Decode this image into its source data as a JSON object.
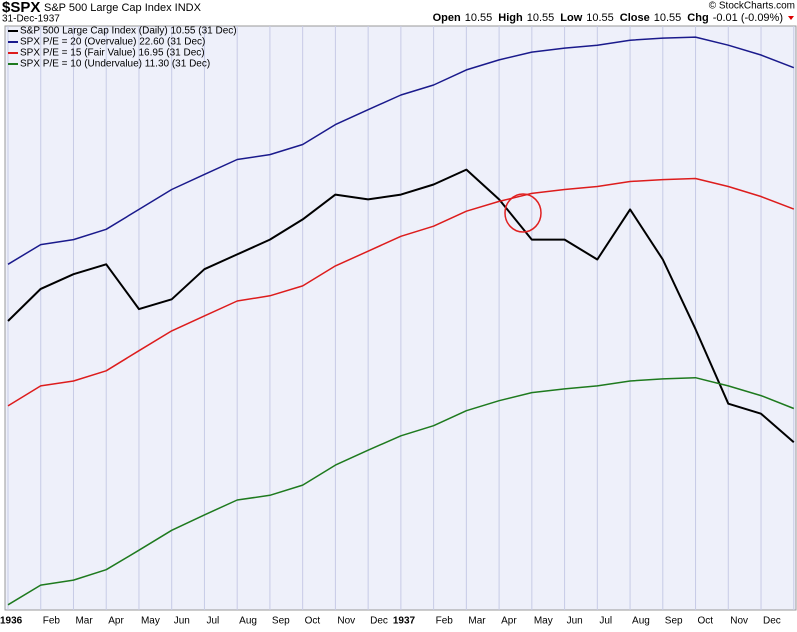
{
  "header": {
    "symbol": "$SPX",
    "name": "S&P 500 Large Cap Index INDX",
    "date": "31-Dec-1937",
    "quote": [
      {
        "label": "Open",
        "value": "10.55"
      },
      {
        "label": "High",
        "value": "10.55"
      },
      {
        "label": "Low",
        "value": "10.55"
      },
      {
        "label": "Close",
        "value": "10.55"
      },
      {
        "label": "Chg",
        "value": "-0.01 (-0.09%)"
      }
    ],
    "credit": "© StockCharts.com"
  },
  "chart_data": {
    "type": "line",
    "log_scale": true,
    "grid": true,
    "legend": "top-left",
    "categories": [
      "1936",
      "Feb",
      "Mar",
      "Apr",
      "May",
      "Jun",
      "Jul",
      "Aug",
      "Sep",
      "Oct",
      "Nov",
      "Dec",
      "1937",
      "Feb",
      "Mar",
      "Apr",
      "May",
      "Jun",
      "Jul",
      "Aug",
      "Sep",
      "Oct",
      "Nov",
      "Dec",
      null
    ],
    "ylim": [
      7.5,
      24.6
    ],
    "series": [
      {
        "name": "S&P 500 Large Cap Index (Daily) 10.55 (31 Dec)",
        "color": "#000000",
        "values": [
          13.5,
          14.41,
          14.85,
          15.15,
          13.83,
          14.11,
          15.0,
          15.46,
          15.93,
          16.6,
          17.46,
          17.29,
          17.46,
          17.82,
          18.37,
          17.29,
          15.93,
          15.93,
          15.3,
          16.94,
          15.3,
          13.28,
          11.41,
          11.18,
          10.55
        ]
      },
      {
        "name": "SPX P/E = 20 (Overvalue) 22.60 (31 Dec)",
        "color": "#1a1a8c",
        "values": [
          15.15,
          15.77,
          15.93,
          16.27,
          16.94,
          17.64,
          18.19,
          18.75,
          18.94,
          19.33,
          20.13,
          20.75,
          21.38,
          21.82,
          22.5,
          22.96,
          23.33,
          23.52,
          23.66,
          23.9,
          24.0,
          24.05,
          23.66,
          23.19,
          22.6
        ]
      },
      {
        "name": "SPX P/E = 15 (Fair Value) 16.95 (31 Dec)",
        "color": "#dd1c1c",
        "values": [
          11.36,
          11.83,
          11.95,
          12.2,
          12.71,
          13.23,
          13.64,
          14.06,
          14.21,
          14.5,
          15.1,
          15.56,
          16.04,
          16.37,
          16.88,
          17.22,
          17.5,
          17.64,
          17.75,
          17.93,
          18.0,
          18.04,
          17.75,
          17.39,
          16.95
        ]
      },
      {
        "name": "SPX P/E = 10 (Undervalue) 11.30 (31 Dec)",
        "color": "#1e7a1e",
        "values": [
          7.58,
          7.89,
          7.97,
          8.14,
          8.47,
          8.82,
          9.1,
          9.38,
          9.47,
          9.67,
          10.07,
          10.38,
          10.69,
          10.91,
          11.25,
          11.48,
          11.67,
          11.76,
          11.83,
          11.95,
          12.0,
          12.03,
          11.83,
          11.6,
          11.3
        ]
      }
    ]
  }
}
